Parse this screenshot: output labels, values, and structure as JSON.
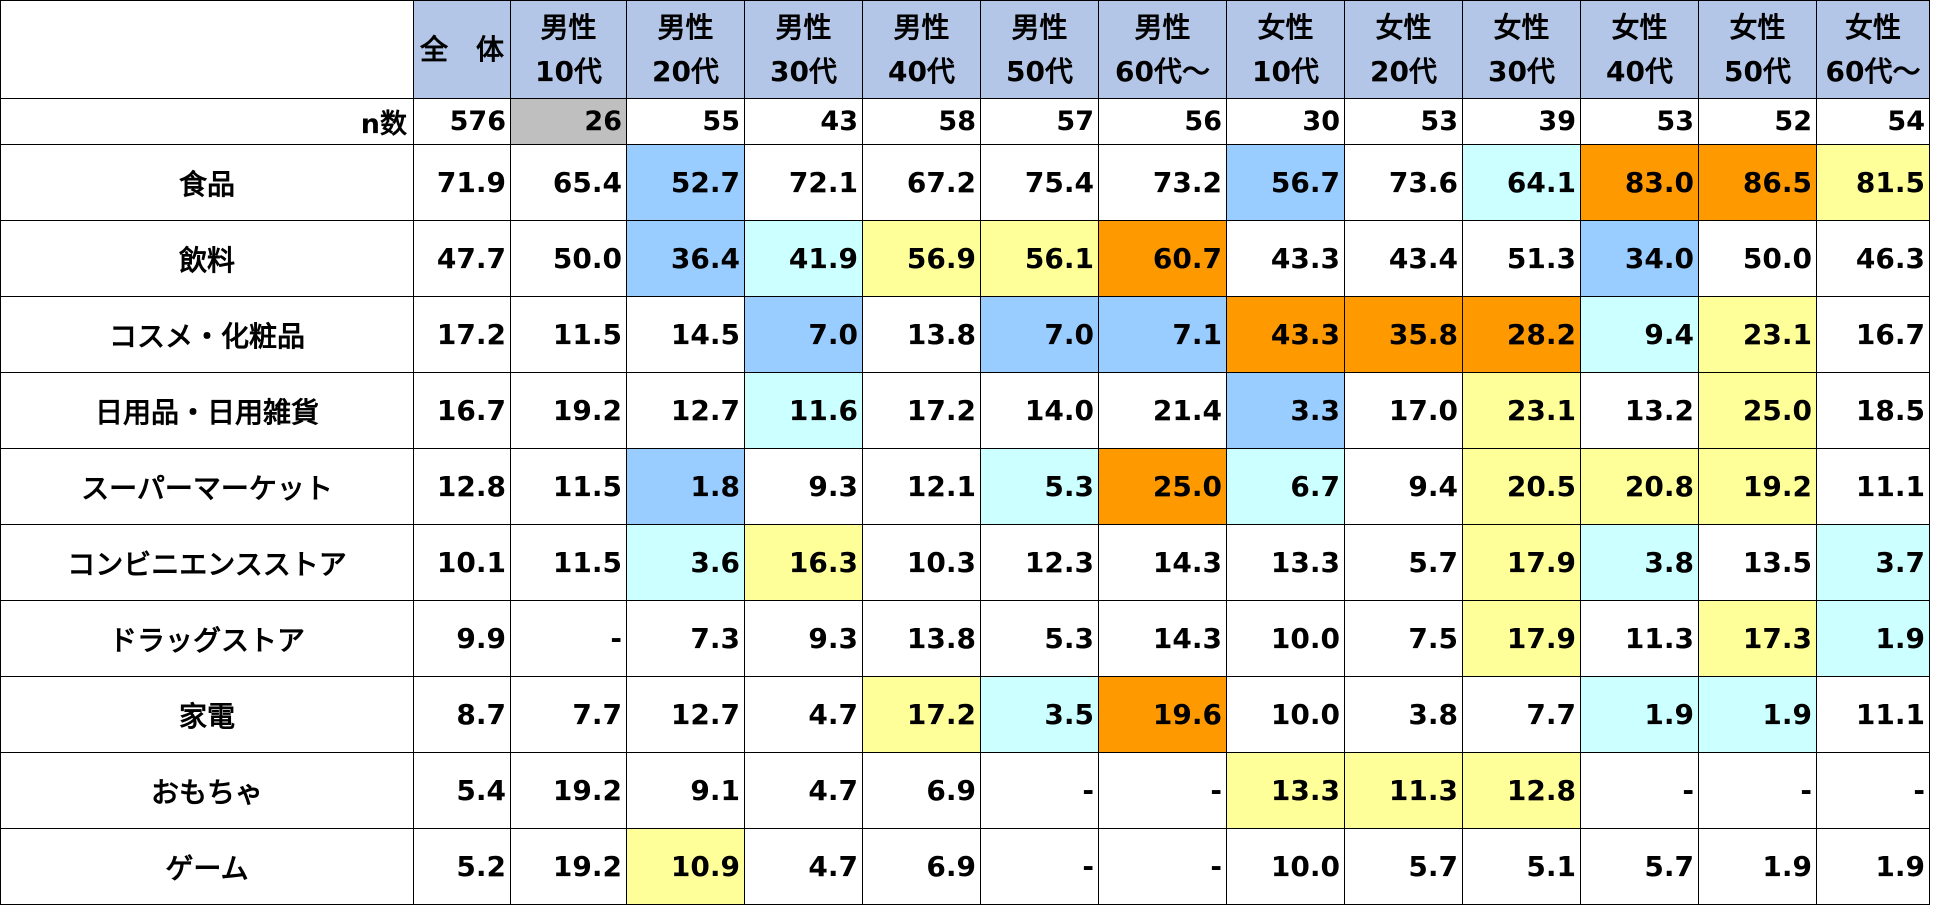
{
  "colors": {
    "header": "#b4c6e7",
    "small_n": "#bfbfbf",
    "high": "#ff9900",
    "mid_high": "#ffff99",
    "mid_low": "#ccffff",
    "low": "#99ccff",
    "none": "#ffffff"
  },
  "chart_data": {
    "type": "table",
    "n_label": "n数",
    "columns": [
      {
        "line1": "全　体",
        "line2": "",
        "n": "576",
        "n_style": "none"
      },
      {
        "line1": "男性",
        "line2": "10代",
        "n": "26",
        "n_style": "small_n"
      },
      {
        "line1": "男性",
        "line2": "20代",
        "n": "55",
        "n_style": "none"
      },
      {
        "line1": "男性",
        "line2": "30代",
        "n": "43",
        "n_style": "none"
      },
      {
        "line1": "男性",
        "line2": "40代",
        "n": "58",
        "n_style": "none"
      },
      {
        "line1": "男性",
        "line2": "50代",
        "n": "57",
        "n_style": "none"
      },
      {
        "line1": "男性",
        "line2": "60代～",
        "n": "56",
        "n_style": "none"
      },
      {
        "line1": "女性",
        "line2": "10代",
        "n": "30",
        "n_style": "none"
      },
      {
        "line1": "女性",
        "line2": "20代",
        "n": "53",
        "n_style": "none"
      },
      {
        "line1": "女性",
        "line2": "30代",
        "n": "39",
        "n_style": "none"
      },
      {
        "line1": "女性",
        "line2": "40代",
        "n": "53",
        "n_style": "none"
      },
      {
        "line1": "女性",
        "line2": "50代",
        "n": "52",
        "n_style": "none"
      },
      {
        "line1": "女性",
        "line2": "60代～",
        "n": "54",
        "n_style": "none"
      }
    ],
    "rows": [
      {
        "label": "食品",
        "values": [
          "71.9",
          "65.4",
          "52.7",
          "72.1",
          "67.2",
          "75.4",
          "73.2",
          "56.7",
          "73.6",
          "64.1",
          "83.0",
          "86.5",
          "81.5"
        ],
        "styles": [
          "none",
          "none",
          "low",
          "none",
          "none",
          "none",
          "none",
          "low",
          "none",
          "mid_low",
          "high",
          "high",
          "mid_high"
        ]
      },
      {
        "label": "飲料",
        "values": [
          "47.7",
          "50.0",
          "36.4",
          "41.9",
          "56.9",
          "56.1",
          "60.7",
          "43.3",
          "43.4",
          "51.3",
          "34.0",
          "50.0",
          "46.3"
        ],
        "styles": [
          "none",
          "none",
          "low",
          "mid_low",
          "mid_high",
          "mid_high",
          "high",
          "none",
          "none",
          "none",
          "low",
          "none",
          "none"
        ]
      },
      {
        "label": "コスメ・化粧品",
        "values": [
          "17.2",
          "11.5",
          "14.5",
          "7.0",
          "13.8",
          "7.0",
          "7.1",
          "43.3",
          "35.8",
          "28.2",
          "9.4",
          "23.1",
          "16.7"
        ],
        "styles": [
          "none",
          "none",
          "none",
          "low",
          "none",
          "low",
          "low",
          "high",
          "high",
          "high",
          "mid_low",
          "mid_high",
          "none"
        ]
      },
      {
        "label": "日用品・日用雑貨",
        "values": [
          "16.7",
          "19.2",
          "12.7",
          "11.6",
          "17.2",
          "14.0",
          "21.4",
          "3.3",
          "17.0",
          "23.1",
          "13.2",
          "25.0",
          "18.5"
        ],
        "styles": [
          "none",
          "none",
          "none",
          "mid_low",
          "none",
          "none",
          "none",
          "low",
          "none",
          "mid_high",
          "none",
          "mid_high",
          "none"
        ]
      },
      {
        "label": "スーパーマーケット",
        "values": [
          "12.8",
          "11.5",
          "1.8",
          "9.3",
          "12.1",
          "5.3",
          "25.0",
          "6.7",
          "9.4",
          "20.5",
          "20.8",
          "19.2",
          "11.1"
        ],
        "styles": [
          "none",
          "none",
          "low",
          "none",
          "none",
          "mid_low",
          "high",
          "mid_low",
          "none",
          "mid_high",
          "mid_high",
          "mid_high",
          "none"
        ]
      },
      {
        "label": "コンビニエンスストア",
        "values": [
          "10.1",
          "11.5",
          "3.6",
          "16.3",
          "10.3",
          "12.3",
          "14.3",
          "13.3",
          "5.7",
          "17.9",
          "3.8",
          "13.5",
          "3.7"
        ],
        "styles": [
          "none",
          "none",
          "mid_low",
          "mid_high",
          "none",
          "none",
          "none",
          "none",
          "none",
          "mid_high",
          "mid_low",
          "none",
          "mid_low"
        ]
      },
      {
        "label": "ドラッグストア",
        "values": [
          "9.9",
          "-",
          "7.3",
          "9.3",
          "13.8",
          "5.3",
          "14.3",
          "10.0",
          "7.5",
          "17.9",
          "11.3",
          "17.3",
          "1.9"
        ],
        "styles": [
          "none",
          "none",
          "none",
          "none",
          "none",
          "none",
          "none",
          "none",
          "none",
          "mid_high",
          "none",
          "mid_high",
          "mid_low"
        ]
      },
      {
        "label": "家電",
        "values": [
          "8.7",
          "7.7",
          "12.7",
          "4.7",
          "17.2",
          "3.5",
          "19.6",
          "10.0",
          "3.8",
          "7.7",
          "1.9",
          "1.9",
          "11.1"
        ],
        "styles": [
          "none",
          "none",
          "none",
          "none",
          "mid_high",
          "mid_low",
          "high",
          "none",
          "none",
          "none",
          "mid_low",
          "mid_low",
          "none"
        ]
      },
      {
        "label": "おもちゃ",
        "values": [
          "5.4",
          "19.2",
          "9.1",
          "4.7",
          "6.9",
          "-",
          "-",
          "13.3",
          "11.3",
          "12.8",
          "-",
          "-",
          "-"
        ],
        "styles": [
          "none",
          "none",
          "none",
          "none",
          "none",
          "none",
          "none",
          "mid_high",
          "mid_high",
          "mid_high",
          "none",
          "none",
          "none"
        ]
      },
      {
        "label": "ゲーム",
        "values": [
          "5.2",
          "19.2",
          "10.9",
          "4.7",
          "6.9",
          "-",
          "-",
          "10.0",
          "5.7",
          "5.1",
          "5.7",
          "1.9",
          "1.9"
        ],
        "styles": [
          "none",
          "none",
          "mid_high",
          "none",
          "none",
          "none",
          "none",
          "none",
          "none",
          "none",
          "none",
          "none",
          "none"
        ]
      }
    ]
  }
}
